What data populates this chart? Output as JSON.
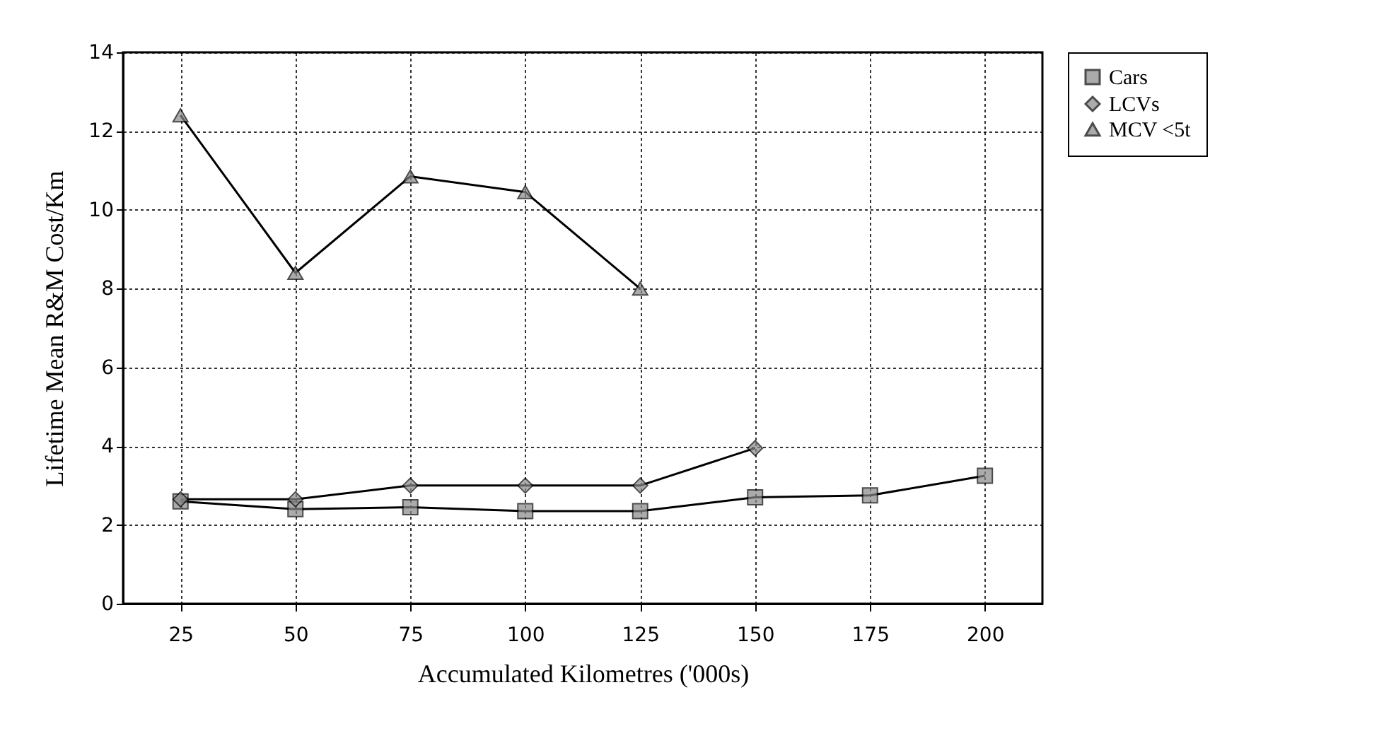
{
  "chart_data": {
    "type": "line",
    "xlabel": "Accumulated Kilometres ('000s)",
    "ylabel": "Lifetime Mean R&M Cost/Km",
    "categories": [
      "25",
      "50",
      "75",
      "100",
      "125",
      "150",
      "175",
      "200"
    ],
    "series": [
      {
        "name": "Cars",
        "color": "#000000",
        "marker": "square",
        "values": [
          2.6,
          2.4,
          2.45,
          2.35,
          2.35,
          2.7,
          2.75,
          3.25
        ]
      },
      {
        "name": "LCVs",
        "color": "#000000",
        "marker": "diamond",
        "values": [
          2.65,
          2.65,
          3.0,
          3.0,
          3.0,
          3.95,
          null,
          null
        ]
      },
      {
        "name": "MCV <5t",
        "color": "#000000",
        "marker": "triangle",
        "values": [
          12.4,
          8.4,
          10.85,
          10.45,
          8.0,
          null,
          null,
          null
        ]
      }
    ],
    "ylim": [
      0,
      14
    ],
    "yticks": [
      0,
      2,
      4,
      6,
      8,
      10,
      12,
      14
    ],
    "grid": true,
    "legend": "right",
    "line_style": "solid"
  }
}
